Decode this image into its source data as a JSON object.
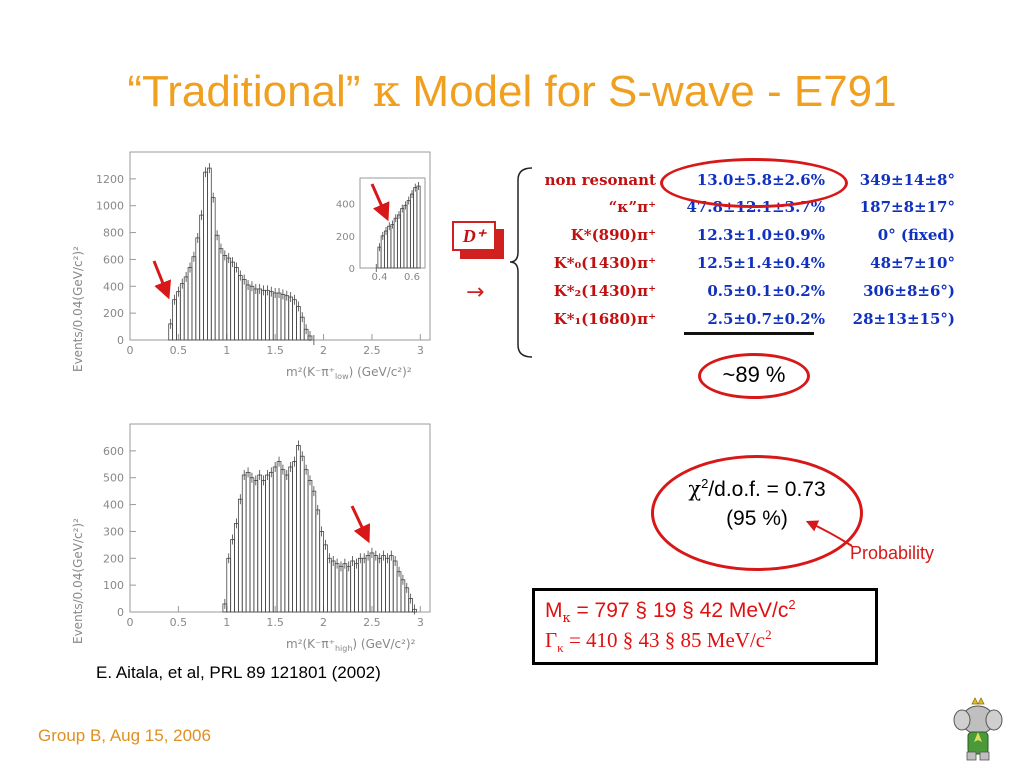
{
  "slide": {
    "title_prefix": "“Traditional” ",
    "title_kappa": "κ",
    "title_suffix": " Model for S-wave - E791",
    "reference": "E. Aitala, et al, PRL 89 121801 (2002)",
    "footer": "Group B, Aug 15, 2006"
  },
  "chart_data": [
    {
      "type": "bar",
      "name": "upper",
      "ylabel": "Events/0.04(GeV/c²)²",
      "xlabel_prefix": "m²(K⁻π⁺",
      "xlabel_sub": "low",
      "xlabel_suffix": ") (GeV/c²)²",
      "xlim": [
        0,
        3.1
      ],
      "ylim": [
        0,
        1400
      ],
      "xticks": [
        "0",
        "0.5",
        "1",
        "1.5",
        "2",
        "2.5",
        "3"
      ],
      "xtick_values": [
        0,
        0.5,
        1,
        1.5,
        2,
        2.5,
        3
      ],
      "yticks": [
        "0",
        "200",
        "400",
        "600",
        "800",
        "1000",
        "1200"
      ],
      "ytick_values": [
        0,
        200,
        400,
        600,
        800,
        1000,
        1200
      ],
      "x": [
        0.42,
        0.46,
        0.5,
        0.54,
        0.58,
        0.62,
        0.66,
        0.7,
        0.74,
        0.78,
        0.82,
        0.86,
        0.9,
        0.94,
        0.98,
        1.02,
        1.06,
        1.1,
        1.14,
        1.18,
        1.22,
        1.26,
        1.3,
        1.34,
        1.38,
        1.42,
        1.46,
        1.5,
        1.54,
        1.58,
        1.62,
        1.66,
        1.7,
        1.74,
        1.78,
        1.82,
        1.86,
        1.9
      ],
      "values": [
        120,
        300,
        360,
        420,
        470,
        540,
        620,
        760,
        930,
        1250,
        1280,
        1060,
        780,
        680,
        630,
        610,
        580,
        540,
        480,
        450,
        410,
        400,
        380,
        380,
        370,
        370,
        360,
        350,
        350,
        340,
        330,
        320,
        300,
        250,
        170,
        80,
        30,
        0
      ],
      "inset": {
        "xlim": [
          0.28,
          0.68
        ],
        "ylim": [
          0,
          560
        ],
        "xticks": [
          "0.4",
          "0.6"
        ],
        "xtick_values": [
          0.4,
          0.6
        ],
        "yticks": [
          "0",
          "200",
          "400"
        ],
        "ytick_values": [
          0,
          200,
          400
        ],
        "x": [
          0.38,
          0.4,
          0.42,
          0.44,
          0.46,
          0.48,
          0.5,
          0.52,
          0.54,
          0.56,
          0.58,
          0.6,
          0.62,
          0.64
        ],
        "values": [
          0,
          130,
          200,
          230,
          260,
          270,
          310,
          330,
          370,
          390,
          420,
          460,
          500,
          510
        ]
      }
    },
    {
      "type": "bar",
      "name": "lower",
      "ylabel": "Events/0.04(GeV/c²)²",
      "xlabel_prefix": "m²(K⁻π⁺",
      "xlabel_sub": "high",
      "xlabel_suffix": ") (GeV/c²)²",
      "xlim": [
        0,
        3.1
      ],
      "ylim": [
        0,
        700
      ],
      "xticks": [
        "0",
        "0.5",
        "1",
        "1.5",
        "2",
        "2.5",
        "3"
      ],
      "xtick_values": [
        0,
        0.5,
        1,
        1.5,
        2,
        2.5,
        3
      ],
      "yticks": [
        "0",
        "100",
        "200",
        "300",
        "400",
        "500",
        "600"
      ],
      "ytick_values": [
        0,
        100,
        200,
        300,
        400,
        500,
        600
      ],
      "x": [
        0.98,
        1.02,
        1.06,
        1.1,
        1.14,
        1.18,
        1.22,
        1.26,
        1.3,
        1.34,
        1.38,
        1.42,
        1.46,
        1.5,
        1.54,
        1.58,
        1.62,
        1.66,
        1.7,
        1.74,
        1.78,
        1.82,
        1.86,
        1.9,
        1.94,
        1.98,
        2.02,
        2.06,
        2.1,
        2.14,
        2.18,
        2.22,
        2.26,
        2.3,
        2.34,
        2.38,
        2.42,
        2.46,
        2.5,
        2.54,
        2.58,
        2.62,
        2.66,
        2.7,
        2.74,
        2.78,
        2.82,
        2.86,
        2.9,
        2.94
      ],
      "values": [
        30,
        200,
        270,
        330,
        420,
        510,
        520,
        500,
        490,
        510,
        490,
        510,
        520,
        540,
        560,
        530,
        510,
        540,
        560,
        620,
        580,
        530,
        490,
        450,
        380,
        300,
        250,
        200,
        190,
        180,
        170,
        180,
        170,
        190,
        180,
        200,
        200,
        210,
        220,
        210,
        200,
        210,
        200,
        210,
        190,
        150,
        120,
        90,
        50,
        10
      ]
    }
  ],
  "diagram": {
    "dplus_label": "D⁺",
    "arrow_symbol": "→",
    "channels": [
      {
        "name": "non resonant",
        "fraction": "13.0±5.8±2.6%",
        "phase": "349±14±8°"
      },
      {
        "name": "“κ”π⁺",
        "fraction": "47.8±12.1±3.7%",
        "phase": "187±8±17°"
      },
      {
        "name": "K*(890)π⁺",
        "fraction": "12.3±1.0±0.9%",
        "phase": "0° (fixed)"
      },
      {
        "name": "K*₀(1430)π⁺",
        "fraction": "12.5±1.4±0.4%",
        "phase": "48±7±10°"
      },
      {
        "name": "K*₂(1430)π⁺",
        "fraction": "0.5±0.1±0.2%",
        "phase": "306±8±6°)"
      },
      {
        "name": "K*₁(1680)π⁺",
        "fraction": "2.5±0.7±0.2%",
        "phase": "28±13±15°)"
      }
    ],
    "total_fraction": "~89 %"
  },
  "fit": {
    "chi_prefix": "χ",
    "chi_sup": "2",
    "chi_suffix": "/d.o.f. = 0.73",
    "confidence": "(95 %)",
    "probability_label": "Probability"
  },
  "params": {
    "mass_sym": "M",
    "mass_sub": "κ",
    "mass_value": " = 797 § 19 § 42 MeV/c",
    "mass_sup": "2",
    "width_sym": "Γ",
    "width_sub": "κ",
    "width_value": " =   410 §  43 §  85 MeV/c",
    "width_sup": "2"
  },
  "colors": {
    "title": "#F0A020",
    "red": "#D81818",
    "blue": "#1030C0",
    "axis": "#888888",
    "hist": "#444444"
  }
}
